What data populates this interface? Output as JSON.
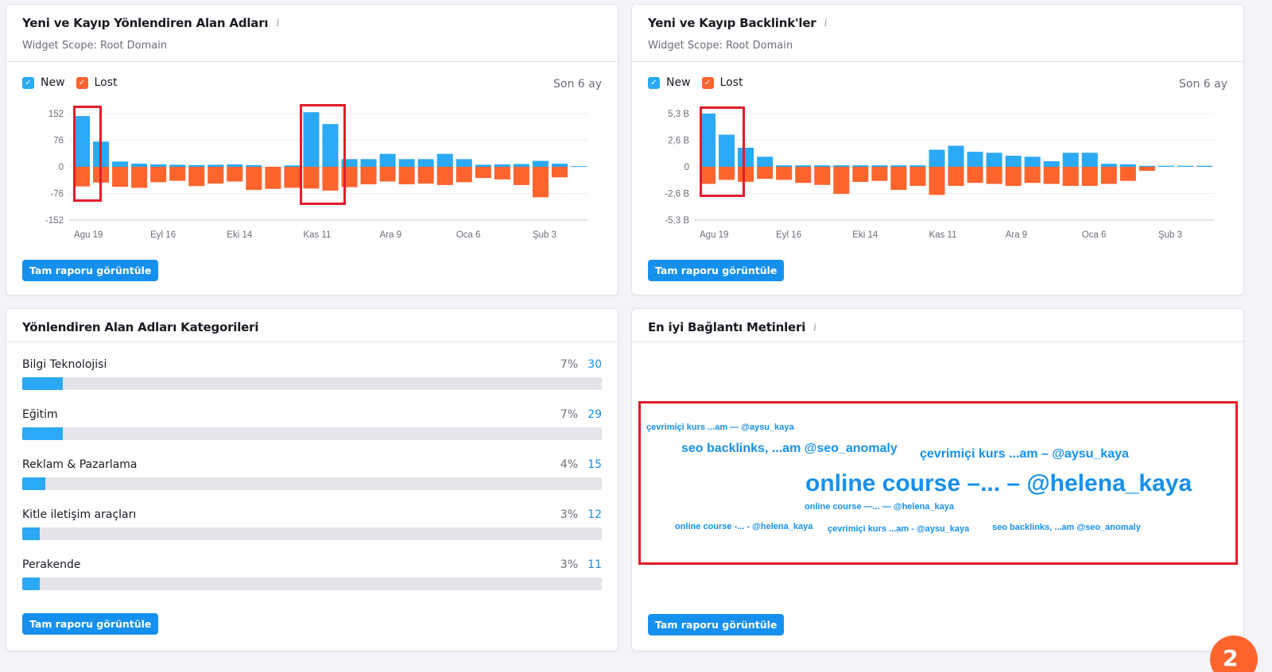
{
  "widgets": {
    "referring_domains": {
      "title": "Yeni ve Kayıp Yönlendiren Alan Adları",
      "scope": "Widget Scope: Root Domain",
      "legend_new": "New",
      "legend_lost": "Lost",
      "period": "Son 6 ay",
      "button": "Tam raporu görüntüle"
    },
    "backlinks": {
      "title": "Yeni ve Kayıp Backlink'ler",
      "scope": "Widget Scope: Root Domain",
      "legend_new": "New",
      "legend_lost": "Lost",
      "period": "Son 6 ay",
      "button": "Tam raporu görüntüle"
    },
    "categories": {
      "title": "Yönlendiren Alan Adları Kategorileri",
      "button": "Tam raporu görüntüle",
      "items": [
        {
          "label": "Bilgi Teknolojisi",
          "pct": "7%",
          "count": "30",
          "fraction": 0.07
        },
        {
          "label": "Eğitim",
          "pct": "7%",
          "count": "29",
          "fraction": 0.07
        },
        {
          "label": "Reklam & Pazarlama",
          "pct": "4%",
          "count": "15",
          "fraction": 0.04
        },
        {
          "label": "Kitle iletişim araçları",
          "pct": "3%",
          "count": "12",
          "fraction": 0.03
        },
        {
          "label": "Perakende",
          "pct": "3%",
          "count": "11",
          "fraction": 0.03
        }
      ]
    },
    "anchors": {
      "title": "En iyi Bağlantı Metinleri",
      "button": "Tam raporu görüntüle",
      "words": [
        "çevrimiçi kurs ...am — @aysu_kaya",
        "seo backlinks, ...am @seo_anomaly",
        "çevrimiçi kurs ...am – @aysu_kaya",
        "online course –... – @helena_kaya",
        "online course —... — @helena_kaya",
        "online course -... - @helena_kaya",
        "çevrimiçi kurs ...am - @aysu_kaya",
        "seo backlinks, ...am @seo_anomaly"
      ]
    }
  },
  "colors": {
    "new": "#2ba9f6",
    "lost": "#ff642d",
    "button": "#1690ef",
    "highlight": "#e51b2a"
  },
  "icons": {
    "info": "info-icon",
    "check": "check-icon"
  },
  "chart_data": [
    {
      "type": "bar",
      "yticks": [
        "152",
        "76",
        "0",
        "-76",
        "-152"
      ],
      "ylim": [
        -152,
        152
      ],
      "xtick_labels": [
        "Agu 19",
        "Eyl 16",
        "Eki 14",
        "Kas 11",
        "Ara 9",
        "Oca 6",
        "Şub 3"
      ],
      "series": [
        {
          "name": "New",
          "values": [
            145,
            72,
            15,
            9,
            7,
            6,
            5,
            6,
            7,
            5,
            0,
            4,
            156,
            122,
            22,
            22,
            37,
            22,
            22,
            37,
            22,
            6,
            7,
            8,
            17,
            9,
            2
          ]
        },
        {
          "name": "Lost",
          "values": [
            -56,
            -45,
            -57,
            -60,
            -44,
            -40,
            -55,
            -48,
            -42,
            -66,
            -63,
            -60,
            -62,
            -68,
            -58,
            -50,
            -42,
            -50,
            -48,
            -52,
            -44,
            -32,
            -36,
            -52,
            -87,
            -30,
            0
          ]
        }
      ]
    },
    {
      "type": "bar",
      "yticks": [
        "5,3 B",
        "2,6 B",
        "0",
        "-2,6 B",
        "-5,3 B"
      ],
      "ylim": [
        -5.3,
        5.3
      ],
      "xtick_labels": [
        "Agu 19",
        "Eyl 16",
        "Eki 14",
        "Kas 11",
        "Ara 9",
        "Oca 6",
        "Şub 3"
      ],
      "series": [
        {
          "name": "New",
          "values": [
            5.3,
            3.2,
            1.9,
            1.0,
            0.15,
            0.15,
            0.15,
            0.15,
            0.15,
            0.15,
            0.15,
            0.15,
            1.7,
            2.1,
            1.5,
            1.4,
            1.1,
            1.0,
            0.55,
            1.4,
            1.4,
            0.3,
            0.25,
            0.1,
            0.1,
            0.1,
            0.1
          ]
        },
        {
          "name": "Lost",
          "values": [
            -1.7,
            -1.3,
            -1.5,
            -1.2,
            -1.3,
            -1.6,
            -1.8,
            -2.7,
            -1.5,
            -1.4,
            -2.3,
            -1.9,
            -2.8,
            -1.9,
            -1.6,
            -1.7,
            -1.9,
            -1.6,
            -1.7,
            -1.9,
            -1.9,
            -1.7,
            -1.4,
            -0.4,
            0,
            0,
            0
          ]
        }
      ]
    }
  ]
}
